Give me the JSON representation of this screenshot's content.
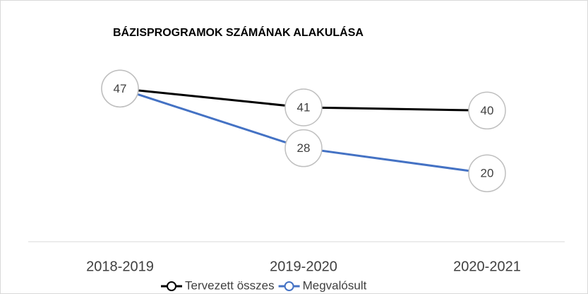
{
  "chart_data": {
    "type": "line",
    "title": "BÁZISPROGRAMOK SZÁMÁNAK ALAKULÁSA",
    "categories": [
      "2018-2019",
      "2019-2020",
      "2020-2021"
    ],
    "series": [
      {
        "name": "Tervezett összes",
        "color": "#000000",
        "values": [
          47,
          41,
          40
        ]
      },
      {
        "name": "Megvalósult",
        "color": "#4472c4",
        "values": [
          47,
          28,
          20
        ]
      }
    ],
    "ylim": [
      0,
      50
    ]
  }
}
